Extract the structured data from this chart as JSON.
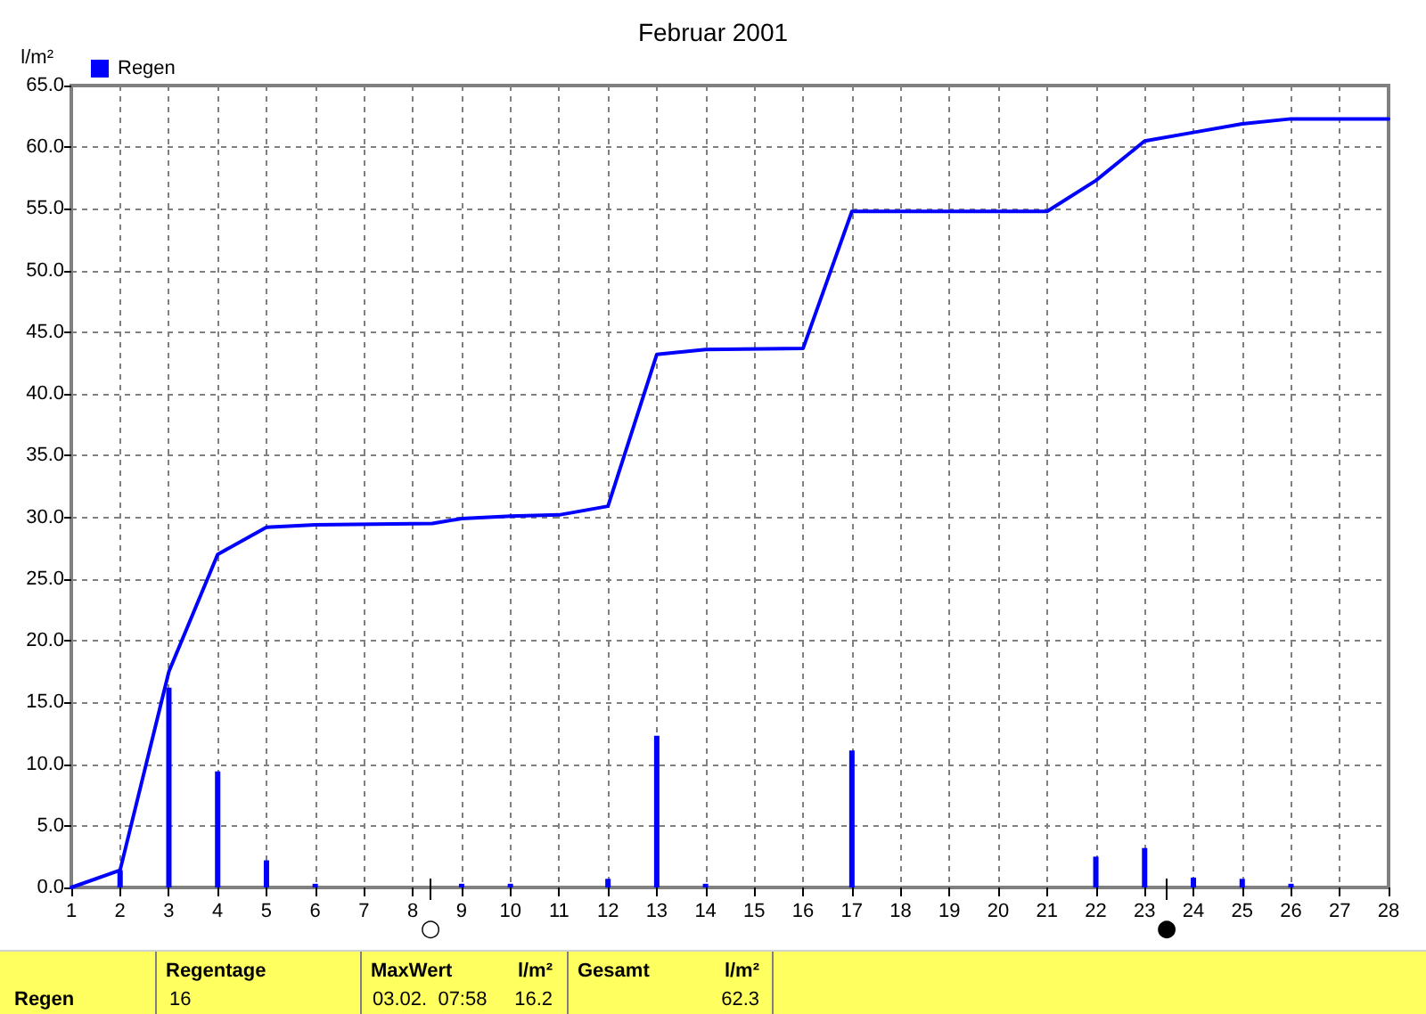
{
  "chart_data": {
    "type": "bar",
    "title": "Februar 2001",
    "ylabel": "l/m²",
    "x": [
      2,
      3,
      4,
      5,
      6,
      9,
      10,
      12,
      13,
      14,
      17,
      22,
      23,
      24,
      25,
      26
    ],
    "series": [
      {
        "name": "Regen",
        "color": "#0000ff",
        "values": [
          1.4,
          16.2,
          9.4,
          2.2,
          0.3,
          0.3,
          0.3,
          0.7,
          12.3,
          0.3,
          11.1,
          2.5,
          3.2,
          0.8,
          0.7,
          0.3
        ]
      },
      {
        "type": "line",
        "color": "#0000ff",
        "x": [
          1,
          2,
          3,
          4,
          5,
          6,
          8.4,
          9,
          10,
          11,
          12,
          13,
          14,
          16,
          17,
          21,
          22,
          23,
          24,
          25,
          26,
          28
        ],
        "values": [
          0,
          1.4,
          17.5,
          27.0,
          29.2,
          29.4,
          29.5,
          29.9,
          30.1,
          30.2,
          30.9,
          43.2,
          43.6,
          43.7,
          54.8,
          54.8,
          57.3,
          60.5,
          61.2,
          61.9,
          62.3,
          62.3
        ]
      }
    ],
    "xlim": [
      1,
      28
    ],
    "xticks": [
      1,
      2,
      3,
      4,
      5,
      6,
      7,
      8,
      9,
      10,
      11,
      12,
      13,
      14,
      15,
      16,
      17,
      18,
      19,
      20,
      21,
      22,
      23,
      24,
      25,
      26,
      27,
      28
    ],
    "ylim": [
      0,
      65
    ],
    "yticks": [
      {
        "value": 0,
        "label": "0.0"
      },
      {
        "value": 5,
        "label": "5.0"
      },
      {
        "value": 10,
        "label": "10.0"
      },
      {
        "value": 15,
        "label": "15.0"
      },
      {
        "value": 20,
        "label": "20.0"
      },
      {
        "value": 25,
        "label": "25.0"
      },
      {
        "value": 30,
        "label": "30.0"
      },
      {
        "value": 35,
        "label": "35.0"
      },
      {
        "value": 40,
        "label": "40.0"
      },
      {
        "value": 45,
        "label": "45.0"
      },
      {
        "value": 50,
        "label": "50.0"
      },
      {
        "value": 55,
        "label": "55.0"
      },
      {
        "value": 60,
        "label": "60.0"
      },
      {
        "value": 65,
        "label": "65.0"
      }
    ],
    "grid": true,
    "legend": "top left",
    "annotations": [
      "Regen",
      "Regentage",
      "16",
      "MaxWert",
      "l/m²",
      "03.02.  07:58",
      "16.2",
      "Gesamt",
      "l/m²",
      "62.3",
      "○",
      "●"
    ]
  }
}
